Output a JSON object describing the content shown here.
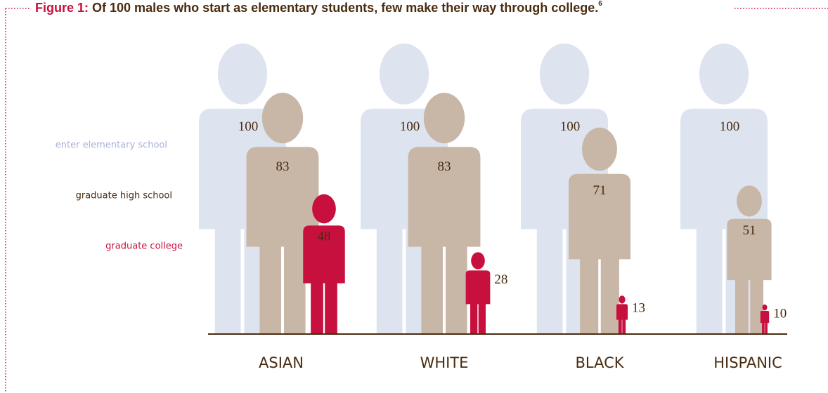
{
  "chart_data": {
    "type": "pictogram",
    "title_label": "Figure 1:",
    "title": "Of 100 males who start as elementary students, few make their way through college.",
    "title_note": "6",
    "categories": [
      "ASIAN",
      "WHITE",
      "BLACK",
      "HISPANIC"
    ],
    "series": [
      {
        "name": "enter elementary school",
        "color": "#dde3ef",
        "values": [
          100,
          100,
          100,
          100
        ]
      },
      {
        "name": "graduate high school",
        "color": "#c8b6a6",
        "values": [
          83,
          83,
          71,
          51
        ]
      },
      {
        "name": "graduate college",
        "color": "#c8103e",
        "values": [
          48,
          28,
          13,
          10
        ]
      }
    ],
    "ylim": [
      0,
      100
    ]
  }
}
